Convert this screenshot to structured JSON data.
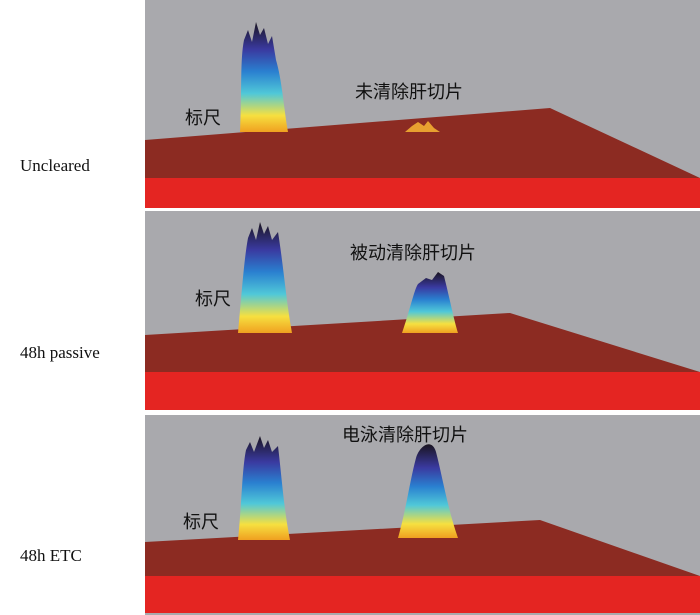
{
  "panels": [
    {
      "row_label": "Uncleared",
      "scale_label": "标尺",
      "caption": "未清除肝切片"
    },
    {
      "row_label": "48h passive",
      "scale_label": "标尺",
      "caption": "被动清除肝切片"
    },
    {
      "row_label": "48h ETC",
      "scale_label": "标尺",
      "caption": "电泳清除肝切片"
    }
  ]
}
